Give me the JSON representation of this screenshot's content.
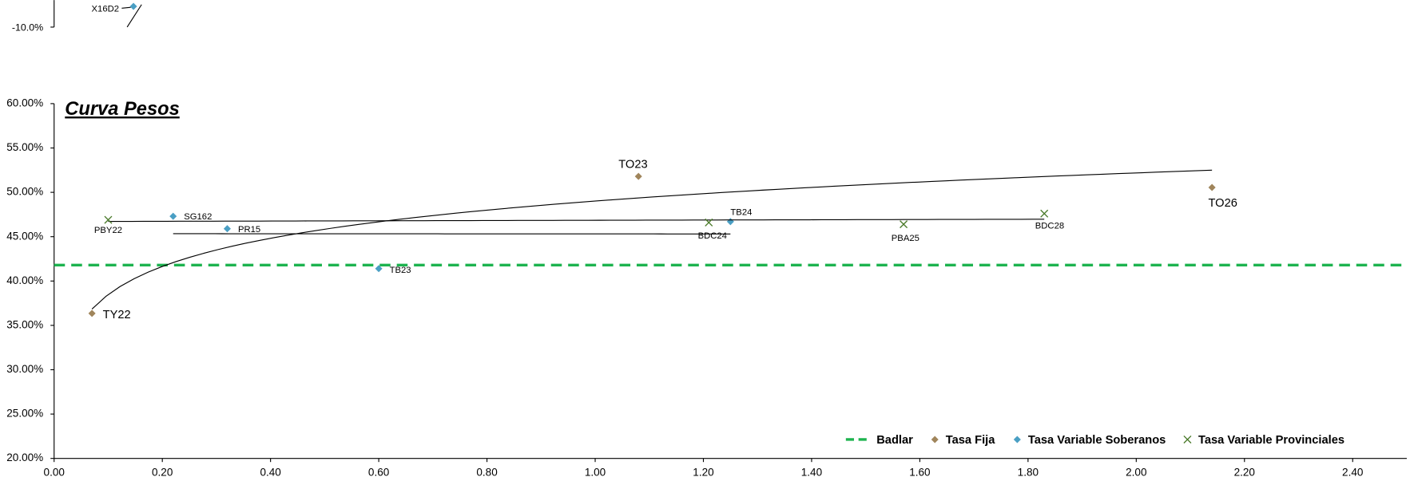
{
  "top_fragment": {
    "ytick_label": "-10.0%",
    "point_label": "X16D2"
  },
  "chart_data": {
    "type": "scatter",
    "title": "Curva  Pesos",
    "xlim": [
      0,
      2.5
    ],
    "xticks": [
      {
        "value": 0,
        "label": "0.00"
      },
      {
        "value": 0.2,
        "label": "0.20"
      },
      {
        "value": 0.4,
        "label": "0.40"
      },
      {
        "value": 0.6,
        "label": "0.60"
      },
      {
        "value": 0.8,
        "label": "0.80"
      },
      {
        "value": 1,
        "label": "1.00"
      },
      {
        "value": 1.2,
        "label": "1.20"
      },
      {
        "value": 1.4,
        "label": "1.40"
      },
      {
        "value": 1.6,
        "label": "1.60"
      },
      {
        "value": 1.8,
        "label": "1.80"
      },
      {
        "value": 2,
        "label": "2.00"
      },
      {
        "value": 2.2,
        "label": "2.20"
      },
      {
        "value": 2.4,
        "label": "2.40"
      }
    ],
    "ylim": [
      20,
      60
    ],
    "yticks": [
      {
        "value": 20,
        "label": "20.00%"
      },
      {
        "value": 25,
        "label": "25.00%"
      },
      {
        "value": 30,
        "label": "30.00%"
      },
      {
        "value": 35,
        "label": "35.00%"
      },
      {
        "value": 40,
        "label": "40.00%"
      },
      {
        "value": 45,
        "label": "45.00%"
      },
      {
        "value": 50,
        "label": "50.00%"
      },
      {
        "value": 55,
        "label": "55.00%"
      },
      {
        "value": 60,
        "label": "60.00%"
      }
    ],
    "legend": "bottom-right",
    "series": [
      {
        "name": "Badlar",
        "color": "#1db34f",
        "marker": "dashed-line",
        "x": [
          0,
          2.5
        ],
        "values": [
          41.8,
          41.8
        ]
      },
      {
        "name": "Tasa Fija",
        "color": "#a0855b",
        "marker": "diamond",
        "trendline": "log",
        "labels": [
          "TY22",
          "TO23",
          "TO26"
        ],
        "x": [
          0.07,
          1.08,
          2.14
        ],
        "values": [
          36.35,
          51.8,
          50.55
        ]
      },
      {
        "name": "Tasa Variable Soberanos",
        "color": "#4a9fc4",
        "marker": "diamond",
        "trendline": "linear",
        "labels": [
          "SG162",
          "PR15",
          "TB23",
          "TB24"
        ],
        "x": [
          0.22,
          0.32,
          0.6,
          1.25
        ],
        "values": [
          47.3,
          45.9,
          41.4,
          46.7
        ]
      },
      {
        "name": "Tasa Variable Provinciales",
        "color": "#4a7a2a",
        "marker": "x",
        "trendline": "linear",
        "labels": [
          "PBY22",
          "BDC24",
          "PBA25",
          "BDC28"
        ],
        "x": [
          0.1,
          1.21,
          1.57,
          1.83
        ],
        "values": [
          46.9,
          46.6,
          46.4,
          47.6
        ]
      }
    ]
  }
}
